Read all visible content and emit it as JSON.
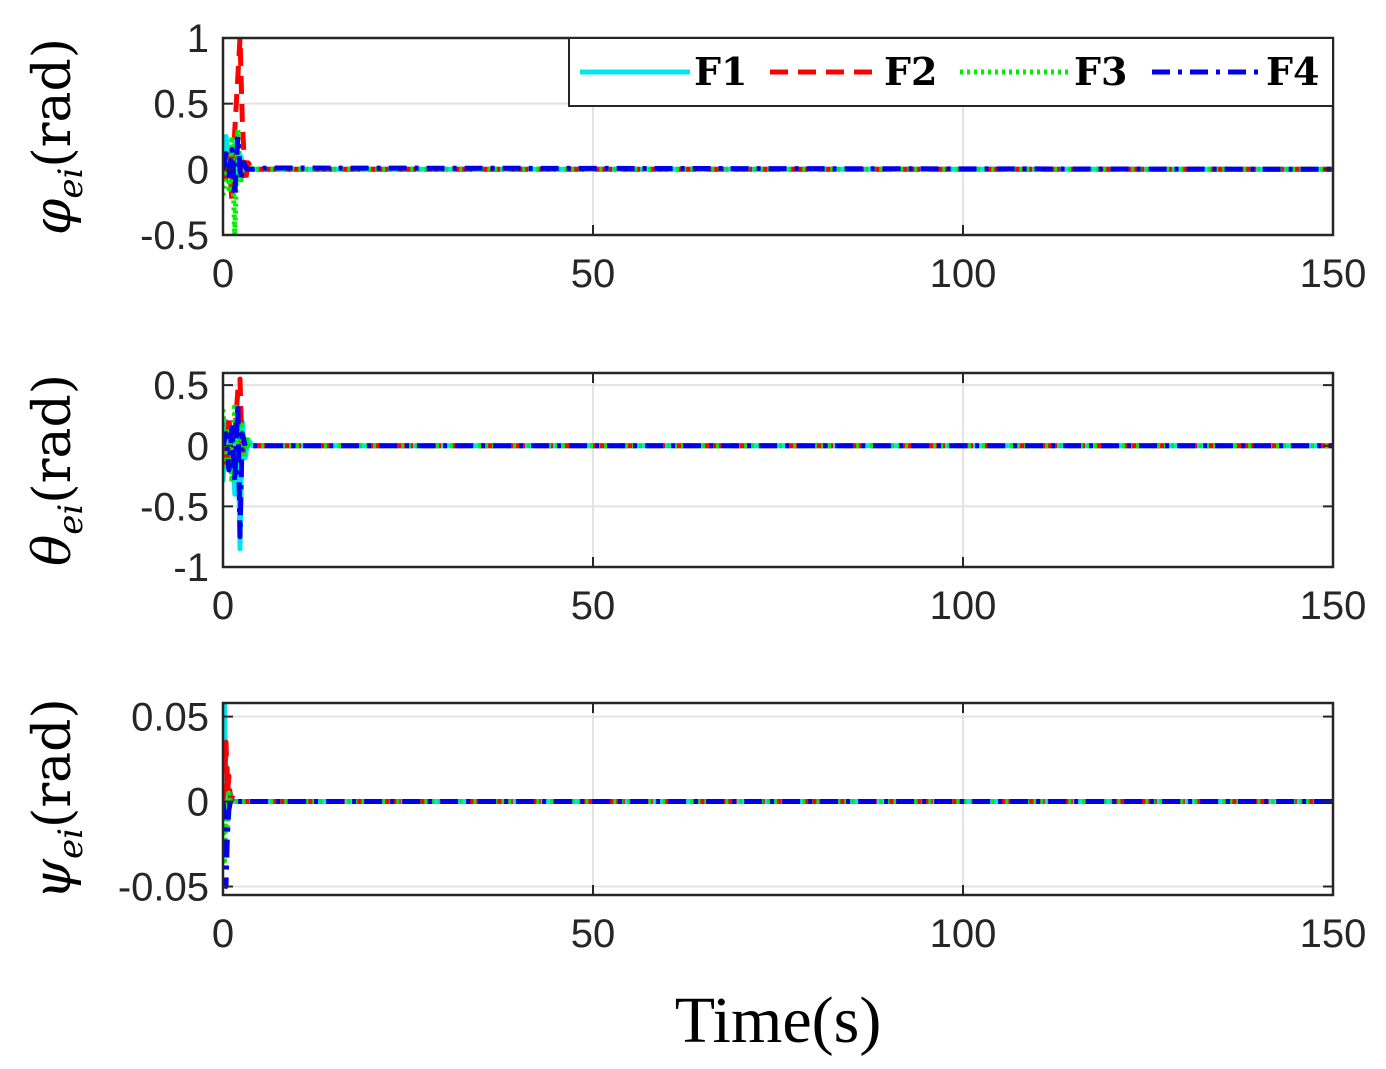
{
  "chart_data": [
    {
      "type": "line",
      "ylabel": "φei(rad)",
      "ylabel_symbol": "φ",
      "ylabel_sub": "ei",
      "ylabel_unit": "(rad)",
      "xlabel": "",
      "xlim": [
        0,
        150
      ],
      "ylim": [
        -0.5,
        1
      ],
      "xticks": [
        "0",
        "50",
        "100",
        "150"
      ],
      "yticks": [
        "-0.5",
        "0",
        "0.5",
        "1"
      ],
      "ytick_values": [
        -0.5,
        0,
        0.5,
        1
      ],
      "grid": true,
      "legend": {
        "placement": "top-right",
        "entries": [
          "F1",
          "F2",
          "F3",
          "F4"
        ]
      },
      "series": [
        {
          "name": "F1",
          "color": "#00e5ee",
          "style": "solid",
          "x": [
            0,
            0.4,
            0.8,
            1.2,
            1.6,
            2.0,
            2.4,
            2.8,
            3.2,
            3.6,
            4,
            6,
            150
          ],
          "y": [
            0.1,
            0.25,
            0.05,
            -0.1,
            0.2,
            -0.05,
            0.1,
            0.0,
            0.03,
            0.0,
            0,
            0,
            0
          ]
        },
        {
          "name": "F2",
          "color": "#ff0000",
          "style": "dashed",
          "x": [
            0,
            0.4,
            0.8,
            1.2,
            1.6,
            2.0,
            2.3,
            2.6,
            3.0,
            3.4,
            4,
            6,
            150
          ],
          "y": [
            0.05,
            -0.1,
            0.15,
            -0.25,
            0.3,
            0.7,
            1.0,
            0.4,
            -0.1,
            0.05,
            0,
            0,
            0
          ]
        },
        {
          "name": "F3",
          "color": "#00ee00",
          "style": "dotted",
          "x": [
            0,
            0.4,
            0.8,
            1.2,
            1.6,
            2.0,
            2.4,
            2.8,
            3.2,
            3.6,
            4,
            6,
            150
          ],
          "y": [
            -0.2,
            0.1,
            -0.15,
            0.25,
            -0.5,
            0.3,
            -0.1,
            0.05,
            0.0,
            0.02,
            0,
            0,
            0
          ]
        },
        {
          "name": "F4",
          "color": "#0000ee",
          "style": "dashdot",
          "x": [
            0,
            0.4,
            0.8,
            1.2,
            1.6,
            2.0,
            2.4,
            2.8,
            3.2,
            3.6,
            4,
            6,
            150
          ],
          "y": [
            0.0,
            0.12,
            -0.05,
            0.15,
            -0.2,
            0.25,
            -0.08,
            0.05,
            0.0,
            0.0,
            0,
            0.01,
            0
          ]
        }
      ]
    },
    {
      "type": "line",
      "ylabel": "θei(rad)",
      "ylabel_symbol": "θ",
      "ylabel_sub": "ei",
      "ylabel_unit": "(rad)",
      "xlabel": "",
      "xlim": [
        0,
        150
      ],
      "ylim": [
        -1,
        0.6
      ],
      "xticks": [
        "0",
        "50",
        "100",
        "150"
      ],
      "yticks": [
        "-1",
        "-0.5",
        "0",
        "0.5"
      ],
      "ytick_values": [
        -1,
        -0.5,
        0,
        0.5
      ],
      "grid": true,
      "series": [
        {
          "name": "F1",
          "color": "#00e5ee",
          "style": "solid",
          "x": [
            0,
            0.4,
            0.8,
            1.2,
            1.6,
            2.0,
            2.3,
            2.6,
            3.0,
            3.4,
            4,
            150
          ],
          "y": [
            -0.3,
            0.2,
            -0.2,
            0.1,
            -0.4,
            0.3,
            -0.85,
            0.2,
            -0.1,
            0.05,
            0,
            0
          ]
        },
        {
          "name": "F2",
          "color": "#ff0000",
          "style": "dashed",
          "x": [
            0,
            0.4,
            0.8,
            1.2,
            1.6,
            2.0,
            2.3,
            2.6,
            3.0,
            3.4,
            4,
            150
          ],
          "y": [
            0.1,
            -0.15,
            0.25,
            -0.2,
            0.1,
            0.45,
            0.55,
            -0.1,
            0.05,
            0.0,
            0,
            0
          ]
        },
        {
          "name": "F3",
          "color": "#00ee00",
          "style": "dotted",
          "x": [
            0,
            0.4,
            0.8,
            1.2,
            1.6,
            2.0,
            2.4,
            2.8,
            3.2,
            3.6,
            4,
            150
          ],
          "y": [
            0.3,
            -0.2,
            0.15,
            -0.3,
            0.35,
            -0.15,
            0.2,
            -0.1,
            0.05,
            0.0,
            0,
            0
          ]
        },
        {
          "name": "F4",
          "color": "#0000ee",
          "style": "dashdot",
          "x": [
            0,
            0.4,
            0.8,
            1.2,
            1.6,
            2.0,
            2.3,
            2.6,
            3.0,
            3.4,
            4,
            150
          ],
          "y": [
            0.0,
            0.1,
            -0.2,
            0.15,
            -0.3,
            0.35,
            -0.75,
            0.1,
            0.0,
            0.0,
            0,
            0
          ]
        }
      ]
    },
    {
      "type": "line",
      "ylabel": "ψei(rad)",
      "ylabel_symbol": "ψ",
      "ylabel_sub": "ei",
      "ylabel_unit": "(rad)",
      "xlabel": "Time(s)",
      "xlim": [
        0,
        150
      ],
      "ylim": [
        -0.055,
        0.058
      ],
      "xticks": [
        "0",
        "50",
        "100",
        "150"
      ],
      "yticks": [
        "-0.05",
        "0",
        "0.05"
      ],
      "ytick_values": [
        -0.05,
        0,
        0.05
      ],
      "grid": true,
      "series": [
        {
          "name": "F1",
          "color": "#00e5ee",
          "style": "solid",
          "x": [
            0,
            0.2,
            0.4,
            0.6,
            0.8,
            1.0,
            1.4,
            2,
            150
          ],
          "y": [
            0.02,
            0.058,
            0.01,
            0.02,
            0.0,
            0.005,
            0.0,
            0,
            0
          ]
        },
        {
          "name": "F2",
          "color": "#ff0000",
          "style": "dashed",
          "x": [
            0,
            0.2,
            0.4,
            0.6,
            0.8,
            1.0,
            1.4,
            2,
            150
          ],
          "y": [
            0.0,
            0.01,
            0.035,
            0.005,
            0.015,
            0.0,
            0.002,
            0,
            0
          ]
        },
        {
          "name": "F3",
          "color": "#00ee00",
          "style": "dotted",
          "x": [
            0,
            0.2,
            0.4,
            0.6,
            0.8,
            1.0,
            1.4,
            2,
            150
          ],
          "y": [
            -0.01,
            -0.035,
            0.0,
            -0.015,
            0.005,
            0.0,
            0.0,
            0,
            0
          ]
        },
        {
          "name": "F4",
          "color": "#0000ee",
          "style": "dashdot",
          "x": [
            0,
            0.2,
            0.4,
            0.6,
            0.8,
            1.0,
            1.4,
            2,
            150
          ],
          "y": [
            0.0,
            -0.01,
            -0.05,
            -0.02,
            -0.005,
            0.0,
            0.0,
            0,
            0
          ]
        }
      ]
    }
  ]
}
